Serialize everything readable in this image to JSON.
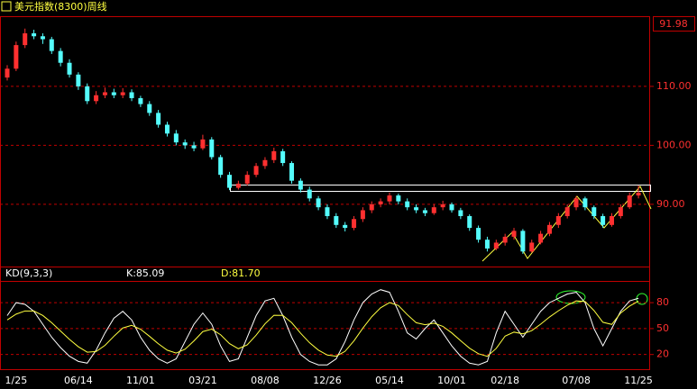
{
  "chart_data": [
    {
      "type": "candlestick",
      "title": "美元指数(8300)周线",
      "last_value": "91.98",
      "up_color": "#ff3030",
      "down_color": "#54fcfc",
      "grid": true,
      "ylim": [
        79.6,
        121.9
      ],
      "yticks": [
        {
          "value": 90,
          "label": "90.00"
        },
        {
          "value": 100,
          "label": "100.00"
        },
        {
          "value": 110,
          "label": "110.00"
        }
      ],
      "candles": [
        [
          111.5,
          113.6,
          111,
          113
        ],
        [
          113,
          117.6,
          112.6,
          117
        ],
        [
          117,
          119.8,
          116.5,
          119
        ],
        [
          119,
          119.6,
          118,
          118.5
        ],
        [
          118.5,
          119,
          117.2,
          118
        ],
        [
          118,
          118.4,
          115.5,
          116
        ],
        [
          116,
          116.5,
          113.4,
          114
        ],
        [
          114,
          114.6,
          111.5,
          112
        ],
        [
          112,
          112.4,
          109.4,
          110
        ],
        [
          110,
          110.5,
          107,
          107.5
        ],
        [
          107.5,
          109.2,
          107,
          108.5
        ],
        [
          108.5,
          109.8,
          108,
          109
        ],
        [
          109,
          109.6,
          108,
          108.5
        ],
        [
          108.5,
          109.7,
          108,
          109
        ],
        [
          109,
          109.5,
          107.5,
          108
        ],
        [
          108,
          108.4,
          106.5,
          107
        ],
        [
          107,
          107.5,
          105,
          105.5
        ],
        [
          105.5,
          106,
          103,
          103.5
        ],
        [
          103.5,
          104,
          101.5,
          102
        ],
        [
          102,
          102.6,
          100,
          100.5
        ],
        [
          100.5,
          101,
          99.4,
          100
        ],
        [
          100,
          100.6,
          99,
          99.5
        ],
        [
          99.5,
          101.8,
          99.2,
          101
        ],
        [
          101,
          101.4,
          97.6,
          98
        ],
        [
          98,
          98.4,
          94.5,
          95
        ],
        [
          95,
          95.5,
          92.4,
          92.8
        ],
        [
          92.8,
          94,
          92.5,
          93.5
        ],
        [
          93.5,
          95.6,
          93.2,
          95
        ],
        [
          95,
          97,
          94.6,
          96.5
        ],
        [
          96.5,
          98,
          96,
          97.5
        ],
        [
          97.5,
          99.6,
          97,
          99
        ],
        [
          99,
          99.4,
          96.5,
          97
        ],
        [
          97,
          97.3,
          93.5,
          94
        ],
        [
          94,
          94.4,
          92,
          92.5
        ],
        [
          92.5,
          93,
          90.5,
          91
        ],
        [
          91,
          91.4,
          89,
          89.5
        ],
        [
          89.5,
          90,
          87.5,
          88
        ],
        [
          88,
          88.5,
          86,
          86.5
        ],
        [
          86.5,
          87,
          85.4,
          86
        ],
        [
          86,
          88,
          85.6,
          87.5
        ],
        [
          87.5,
          89.5,
          87,
          89
        ],
        [
          89,
          90.5,
          88.5,
          90
        ],
        [
          90,
          91,
          89.5,
          90.5
        ],
        [
          90.5,
          92,
          90,
          91.5
        ],
        [
          91.5,
          91.8,
          90,
          90.5
        ],
        [
          90.5,
          91,
          89,
          89.5
        ],
        [
          89.5,
          90,
          88.5,
          89
        ],
        [
          89,
          89.4,
          88,
          88.5
        ],
        [
          88.5,
          90,
          88.2,
          89.5
        ],
        [
          89.5,
          90.6,
          89,
          90
        ],
        [
          90,
          90.3,
          88.6,
          89
        ],
        [
          89,
          89.4,
          87.5,
          88
        ],
        [
          88,
          88.3,
          85.5,
          86
        ],
        [
          86,
          86.4,
          83.5,
          84
        ],
        [
          84,
          84.5,
          82,
          82.5
        ],
        [
          82.5,
          84,
          82.2,
          83.5
        ],
        [
          83.5,
          85,
          83,
          84.5
        ],
        [
          84.5,
          86,
          84,
          85.5
        ],
        [
          85.5,
          85.8,
          81.6,
          82
        ],
        [
          82,
          84,
          81.8,
          83.5
        ],
        [
          83.5,
          85.5,
          83.2,
          85
        ],
        [
          85,
          87,
          84.6,
          86.5
        ],
        [
          86.5,
          88.5,
          86,
          88
        ],
        [
          88,
          90,
          87.6,
          89.5
        ],
        [
          89.5,
          91.4,
          89,
          91
        ],
        [
          91,
          91.3,
          89,
          89.5
        ],
        [
          89.5,
          89.8,
          87.5,
          88
        ],
        [
          88,
          88.4,
          86,
          86.5
        ],
        [
          86.5,
          88.5,
          86.2,
          88
        ],
        [
          88,
          90,
          87.6,
          89.5
        ],
        [
          89.5,
          92,
          89.2,
          91.5
        ],
        [
          91.5,
          93.2,
          91,
          91.98
        ]
      ]
    },
    {
      "type": "line",
      "title": "KD(9,3,3)",
      "k_label": "K:85.09",
      "d_label": "D:81.70",
      "grid": true,
      "ylim": [
        3,
        102
      ],
      "yticks": [
        20,
        50,
        80
      ],
      "categories": [
        null,
        "1/25",
        null,
        null,
        null,
        null,
        null,
        null,
        "06/14",
        null,
        null,
        null,
        null,
        null,
        null,
        "11/01",
        null,
        null,
        null,
        null,
        null,
        null,
        "03/21",
        null,
        null,
        null,
        null,
        null,
        null,
        "08/08",
        null,
        null,
        null,
        null,
        null,
        null,
        "12/26",
        null,
        null,
        null,
        null,
        null,
        null,
        "05/14",
        null,
        null,
        null,
        null,
        null,
        null,
        "10/01",
        null,
        null,
        null,
        null,
        null,
        "02/18",
        null,
        null,
        null,
        null,
        null,
        null,
        null,
        "07/08",
        null,
        null,
        null,
        null,
        null,
        null,
        "11/25"
      ],
      "series": [
        {
          "name": "K",
          "color": "#ffffff",
          "values": [
            65,
            80,
            78,
            70,
            55,
            40,
            28,
            18,
            12,
            10,
            25,
            45,
            62,
            70,
            60,
            40,
            25,
            15,
            10,
            15,
            35,
            55,
            68,
            55,
            30,
            12,
            15,
            40,
            65,
            82,
            85,
            65,
            40,
            20,
            12,
            8,
            8,
            15,
            35,
            60,
            80,
            90,
            95,
            92,
            70,
            45,
            38,
            50,
            60,
            45,
            30,
            18,
            10,
            8,
            12,
            45,
            70,
            55,
            40,
            55,
            70,
            80,
            85,
            90,
            92,
            80,
            50,
            30,
            50,
            70,
            82,
            85.09
          ]
        },
        {
          "name": "D",
          "color": "#ffff40",
          "values": [
            60,
            66.7,
            70.4,
            70.3,
            65.2,
            56.8,
            47.2,
            37.5,
            29,
            22.7,
            23.4,
            30.6,
            41.1,
            50.7,
            53.8,
            49.2,
            41.1,
            32.4,
            25,
            21.7,
            26.1,
            35.7,
            46.5,
            49.3,
            42.9,
            32.6,
            26.7,
            31.2,
            42.4,
            55.6,
            65.4,
            65.3,
            56.8,
            44.6,
            33.7,
            25.1,
            19.4,
            18,
            23.7,
            35.8,
            50.5,
            63.7,
            74.1,
            80.1,
            76.7,
            66.1,
            56.8,
            54.5,
            56.3,
            52.6,
            45,
            36,
            27.3,
            20.9,
            17.9,
            27,
            41.3,
            45.9,
            43.9,
            47.6,
            55.1,
            63.4,
            70.6,
            77.1,
            82,
            81.3,
            70.9,
            57.3,
            54.8,
            68,
            76,
            81.7
          ]
        }
      ]
    }
  ]
}
